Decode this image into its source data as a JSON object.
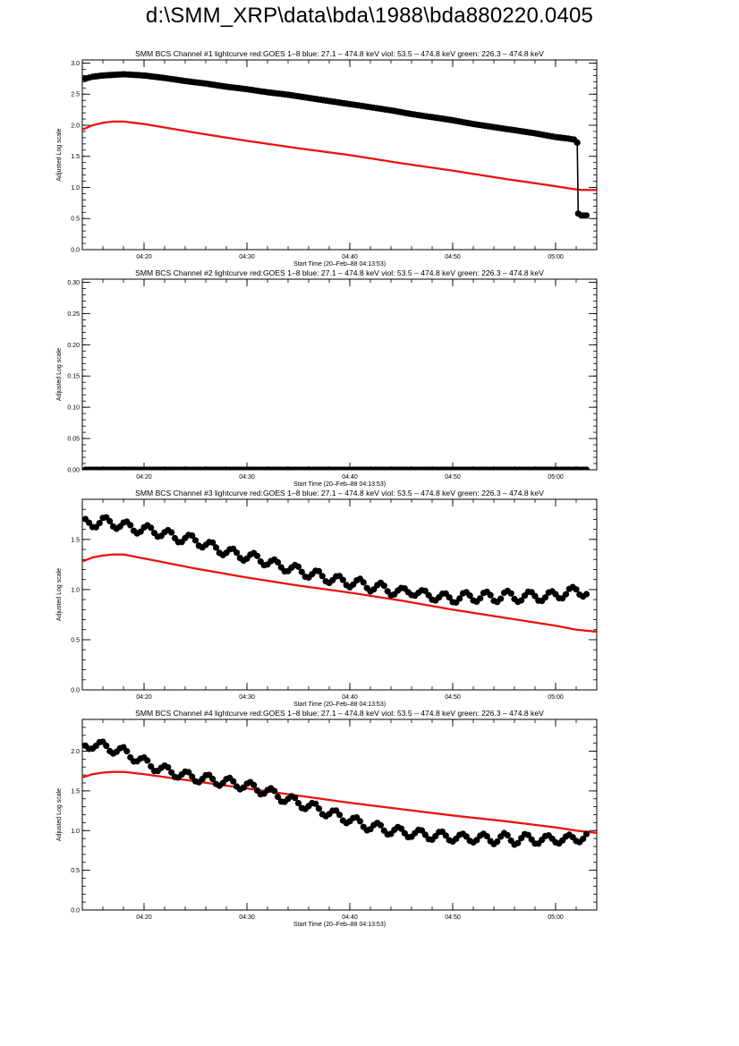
{
  "page": {
    "title": "d:\\SMM_XRP\\data\\bda\\1988\\bda880220.0405"
  },
  "colors": {
    "goes": "#e8140f",
    "bcs": "#000000"
  },
  "chart_data": [
    {
      "type": "scatter",
      "title": "SMM BCS Channel #1 lightcurve  red:GOES 1–8  blue: 27.1 – 474.8 keV  viol: 53.5 – 474.8 keV  green: 226.3 – 474.8 keV",
      "xlabel": "Start Time (20–Feb–88 04:13:53)",
      "ylabel": "Adjusted Log scale",
      "xlim": [
        14.0,
        64.0
      ],
      "ylim": [
        0.0,
        3.05
      ],
      "xticks": [
        {
          "v": 20,
          "label": "04:20"
        },
        {
          "v": 30,
          "label": "04:30"
        },
        {
          "v": 40,
          "label": "04:40"
        },
        {
          "v": 50,
          "label": "04:50"
        },
        {
          "v": 60,
          "label": "05:00"
        }
      ],
      "yticks": [
        {
          "v": 0,
          "label": "0.0"
        },
        {
          "v": 0.5,
          "label": "0.5"
        },
        {
          "v": 1.0,
          "label": "1.0"
        },
        {
          "v": 1.5,
          "label": "1.5"
        },
        {
          "v": 2.0,
          "label": "2.0"
        },
        {
          "v": 2.5,
          "label": "2.5"
        },
        {
          "v": 3.0,
          "label": "3.0"
        }
      ],
      "series": [
        {
          "role": "goes",
          "style": "line",
          "color": "#e8140f",
          "x": [
            14,
            15,
            16,
            17,
            18,
            20,
            25,
            30,
            35,
            40,
            45,
            50,
            55,
            60,
            61.5,
            62.5,
            64
          ],
          "y": [
            1.93,
            2.0,
            2.04,
            2.06,
            2.06,
            2.02,
            1.88,
            1.75,
            1.63,
            1.52,
            1.39,
            1.27,
            1.14,
            1.02,
            0.98,
            0.96,
            0.96
          ]
        },
        {
          "role": "bcs",
          "style": "markers-line",
          "color": "#000000",
          "x": [
            14.3,
            15,
            16,
            17,
            18,
            19,
            20,
            21,
            22,
            24,
            26,
            28,
            30,
            32,
            34,
            36,
            38,
            40,
            42,
            44,
            46,
            48,
            50,
            52,
            54,
            56,
            58,
            60,
            61,
            61.8,
            62.1,
            62.2,
            62.5,
            63
          ],
          "y": [
            2.75,
            2.78,
            2.8,
            2.81,
            2.82,
            2.81,
            2.8,
            2.78,
            2.76,
            2.71,
            2.67,
            2.62,
            2.58,
            2.53,
            2.49,
            2.44,
            2.39,
            2.34,
            2.29,
            2.24,
            2.18,
            2.13,
            2.08,
            2.02,
            1.97,
            1.92,
            1.87,
            1.81,
            1.79,
            1.77,
            1.72,
            0.58,
            0.55,
            0.55
          ]
        }
      ]
    },
    {
      "type": "scatter",
      "title": "SMM BCS Channel #2 lightcurve  red:GOES 1–8  blue: 27.1 – 474.8 keV  viol: 53.5 – 474.8 keV  green: 226.3 – 474.8 keV",
      "xlabel": "Start Time (20–Feb–88 04:13:53)",
      "ylabel": "Adjusted Log scale",
      "xlim": [
        14.0,
        64.0
      ],
      "ylim": [
        0.0,
        0.305
      ],
      "xticks": [
        {
          "v": 20,
          "label": "04:20"
        },
        {
          "v": 30,
          "label": "04:30"
        },
        {
          "v": 40,
          "label": "04:40"
        },
        {
          "v": 50,
          "label": "04:50"
        },
        {
          "v": 60,
          "label": "05:00"
        }
      ],
      "yticks": [
        {
          "v": 0,
          "label": "0.00"
        },
        {
          "v": 0.05,
          "label": "0.05"
        },
        {
          "v": 0.1,
          "label": "0.10"
        },
        {
          "v": 0.15,
          "label": "0.15"
        },
        {
          "v": 0.2,
          "label": "0.20"
        },
        {
          "v": 0.25,
          "label": "0.25"
        },
        {
          "v": 0.3,
          "label": "0.30"
        }
      ],
      "series": [
        {
          "role": "bcs",
          "style": "markers-line",
          "color": "#000000",
          "x": [
            14.3,
            20,
            30,
            40,
            50,
            63
          ],
          "y": [
            0.0,
            0.0,
            0.0,
            0.0,
            0.0,
            0.0
          ]
        }
      ]
    },
    {
      "type": "scatter",
      "title": "SMM BCS Channel #3 lightcurve  red:GOES 1–8  blue: 27.1 – 474.8 keV  viol: 53.5 – 474.8 keV  green: 226.3 – 474.8 keV",
      "xlabel": "Start Time (20–Feb–88 04:13:53)",
      "ylabel": "Adjusted Log scale",
      "xlim": [
        14.0,
        64.0
      ],
      "ylim": [
        0.0,
        1.9
      ],
      "xticks": [
        {
          "v": 20,
          "label": "04:20"
        },
        {
          "v": 30,
          "label": "04:30"
        },
        {
          "v": 40,
          "label": "04:40"
        },
        {
          "v": 50,
          "label": "04:50"
        },
        {
          "v": 60,
          "label": "05:00"
        }
      ],
      "yticks": [
        {
          "v": 0,
          "label": "0.0"
        },
        {
          "v": 0.5,
          "label": "0.5"
        },
        {
          "v": 1.0,
          "label": "1.0"
        },
        {
          "v": 1.5,
          "label": "1.5"
        }
      ],
      "series": [
        {
          "role": "goes",
          "style": "line",
          "color": "#e8140f",
          "x": [
            14,
            15,
            16,
            17,
            18,
            20,
            25,
            30,
            35,
            40,
            45,
            50,
            55,
            60,
            62,
            64
          ],
          "y": [
            1.28,
            1.32,
            1.34,
            1.35,
            1.35,
            1.31,
            1.21,
            1.12,
            1.04,
            0.97,
            0.89,
            0.8,
            0.72,
            0.64,
            0.6,
            0.58
          ]
        },
        {
          "role": "bcs",
          "style": "markers",
          "color": "#000000",
          "x": [
            14.3,
            15,
            16,
            17,
            18,
            19,
            20,
            21,
            22,
            23,
            24,
            25,
            26,
            27,
            28,
            29,
            30,
            31,
            32,
            33,
            34,
            35,
            36,
            37,
            38,
            39,
            40,
            41,
            42,
            43,
            44,
            45,
            46,
            47,
            48,
            49,
            50,
            51,
            52,
            53,
            54,
            55,
            56,
            57,
            58,
            59,
            60,
            61,
            62,
            63
          ],
          "y": [
            1.66,
            1.66,
            1.68,
            1.66,
            1.64,
            1.61,
            1.6,
            1.58,
            1.56,
            1.52,
            1.51,
            1.49,
            1.45,
            1.41,
            1.38,
            1.35,
            1.33,
            1.31,
            1.28,
            1.24,
            1.22,
            1.19,
            1.16,
            1.14,
            1.11,
            1.09,
            1.07,
            1.06,
            1.03,
            1.02,
            0.99,
            0.97,
            0.99,
            0.95,
            0.94,
            0.92,
            0.91,
            0.93,
            0.92,
            0.94,
            0.91,
            0.95,
            0.92,
            0.93,
            0.94,
            0.92,
            0.95,
            0.96,
            0.99,
            0.97
          ]
        }
      ]
    },
    {
      "type": "scatter",
      "title": "SMM BCS Channel #4 lightcurve  red:GOES 1–8  blue: 27.1 – 474.8 keV  viol: 53.5 – 474.8 keV  green: 226.3 – 474.8 keV",
      "xlabel": "Start Time (20–Feb–88 04:13:53)",
      "ylabel": "Adjusted Log scale",
      "xlim": [
        14.0,
        64.0
      ],
      "ylim": [
        0.0,
        2.4
      ],
      "xticks": [
        {
          "v": 20,
          "label": "04:20"
        },
        {
          "v": 30,
          "label": "04:30"
        },
        {
          "v": 40,
          "label": "04:40"
        },
        {
          "v": 50,
          "label": "04:50"
        },
        {
          "v": 60,
          "label": "05:00"
        }
      ],
      "yticks": [
        {
          "v": 0,
          "label": "0.0"
        },
        {
          "v": 0.5,
          "label": "0.5"
        },
        {
          "v": 1.0,
          "label": "1.0"
        },
        {
          "v": 1.5,
          "label": "1.5"
        },
        {
          "v": 2.0,
          "label": "2.0"
        }
      ],
      "series": [
        {
          "role": "goes",
          "style": "line",
          "color": "#e8140f",
          "x": [
            14,
            15,
            16,
            17,
            18,
            20,
            25,
            30,
            35,
            40,
            45,
            50,
            55,
            60,
            62,
            64
          ],
          "y": [
            1.67,
            1.71,
            1.73,
            1.74,
            1.74,
            1.71,
            1.62,
            1.53,
            1.44,
            1.35,
            1.27,
            1.19,
            1.12,
            1.04,
            1.0,
            0.97
          ]
        },
        {
          "role": "bcs",
          "style": "markers",
          "color": "#000000",
          "x": [
            14.3,
            15,
            16,
            17,
            18,
            19,
            20,
            21,
            22,
            23,
            24,
            25,
            26,
            27,
            28,
            29,
            30,
            31,
            32,
            33,
            34,
            35,
            36,
            37,
            38,
            39,
            40,
            41,
            42,
            43,
            44,
            45,
            46,
            47,
            48,
            49,
            50,
            51,
            52,
            53,
            54,
            55,
            56,
            57,
            58,
            59,
            60,
            61,
            62,
            63
          ],
          "y": [
            2.06,
            2.09,
            2.06,
            2.03,
            1.99,
            1.93,
            1.86,
            1.81,
            1.76,
            1.73,
            1.69,
            1.67,
            1.65,
            1.63,
            1.61,
            1.59,
            1.56,
            1.53,
            1.49,
            1.44,
            1.39,
            1.35,
            1.31,
            1.27,
            1.22,
            1.18,
            1.14,
            1.09,
            1.05,
            1.03,
            1.0,
            0.98,
            0.97,
            0.95,
            0.94,
            0.93,
            0.92,
            0.9,
            0.91,
            0.9,
            0.89,
            0.91,
            0.88,
            0.9,
            0.89,
            0.88,
            0.9,
            0.88,
            0.91,
            0.92
          ]
        }
      ]
    }
  ]
}
